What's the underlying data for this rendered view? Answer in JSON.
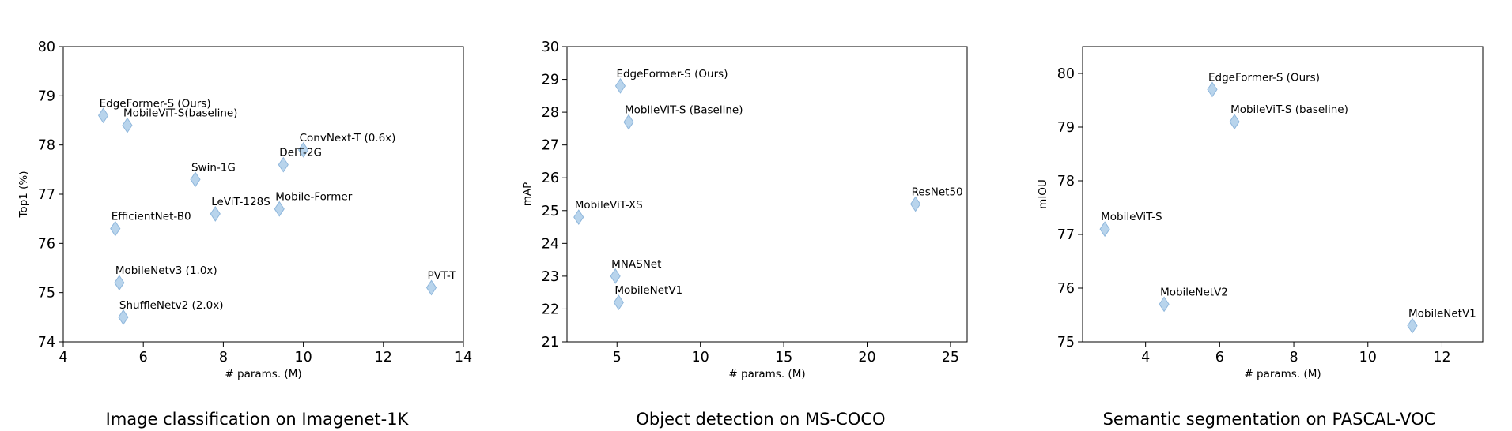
{
  "chart_data": [
    {
      "type": "scatter",
      "caption": "Image classification on Imagenet-1K",
      "xlabel": "# params. (M)",
      "ylabel": "Top1 (%)",
      "xlim": [
        4,
        14
      ],
      "ylim": [
        74,
        80
      ],
      "xticks": [
        4,
        6,
        8,
        10,
        12,
        14
      ],
      "yticks": [
        74,
        75,
        76,
        77,
        78,
        79,
        80
      ],
      "marker": "diamond",
      "marker_color": "#b8d4ec",
      "points": [
        {
          "label": "EdgeFormer-S (Ours)",
          "x": 5.0,
          "y": 78.6
        },
        {
          "label": "MobileViT-S(baseline)",
          "x": 5.6,
          "y": 78.4
        },
        {
          "label": "ConvNext-T (0.6x)",
          "x": 10.0,
          "y": 77.9
        },
        {
          "label": "DeIT-2G",
          "x": 9.5,
          "y": 77.6
        },
        {
          "label": "Swin-1G",
          "x": 7.3,
          "y": 77.3
        },
        {
          "label": "LeViT-128S",
          "x": 7.8,
          "y": 76.6
        },
        {
          "label": "Mobile-Former",
          "x": 9.4,
          "y": 76.7
        },
        {
          "label": "EfficientNet-B0",
          "x": 5.3,
          "y": 76.3
        },
        {
          "label": "MobileNetv3 (1.0x)",
          "x": 5.4,
          "y": 75.2
        },
        {
          "label": "ShuffleNetv2 (2.0x)",
          "x": 5.5,
          "y": 74.5
        },
        {
          "label": "PVT-T",
          "x": 13.2,
          "y": 75.1
        }
      ]
    },
    {
      "type": "scatter",
      "caption": "Object detection on MS-COCO",
      "xlabel": "# params. (M)",
      "ylabel": "mAP",
      "xlim": [
        2,
        26
      ],
      "ylim": [
        21,
        30
      ],
      "xticks": [
        5,
        10,
        15,
        20,
        25
      ],
      "yticks": [
        21,
        22,
        23,
        24,
        25,
        26,
        27,
        28,
        29,
        30
      ],
      "marker": "diamond",
      "marker_color": "#b8d4ec",
      "points": [
        {
          "label": "EdgeFormer-S (Ours)",
          "x": 5.2,
          "y": 28.8
        },
        {
          "label": "MobileViT-S (Baseline)",
          "x": 5.7,
          "y": 27.7
        },
        {
          "label": "MobileViT-XS",
          "x": 2.7,
          "y": 24.8
        },
        {
          "label": "ResNet50",
          "x": 22.9,
          "y": 25.2
        },
        {
          "label": "MNASNet",
          "x": 4.9,
          "y": 23.0
        },
        {
          "label": "MobileNetV1",
          "x": 5.1,
          "y": 22.2
        }
      ]
    },
    {
      "type": "scatter",
      "caption": "Semantic segmentation on PASCAL-VOC",
      "xlabel": "# params. (M)",
      "ylabel": "mIOU",
      "xlim": [
        2.3,
        13.1
      ],
      "ylim": [
        75,
        80.5
      ],
      "xticks": [
        4,
        6,
        8,
        10,
        12
      ],
      "yticks": [
        75,
        76,
        77,
        78,
        79,
        80
      ],
      "marker": "diamond",
      "marker_color": "#b8d4ec",
      "points": [
        {
          "label": "EdgeFormer-S (Ours)",
          "x": 5.8,
          "y": 79.7
        },
        {
          "label": "MobileViT-S (baseline)",
          "x": 6.4,
          "y": 79.1
        },
        {
          "label": "MobileViT-S",
          "x": 2.9,
          "y": 77.1
        },
        {
          "label": "MobileNetV2",
          "x": 4.5,
          "y": 75.7
        },
        {
          "label": "MobileNetV1",
          "x": 11.2,
          "y": 75.3
        }
      ]
    }
  ]
}
